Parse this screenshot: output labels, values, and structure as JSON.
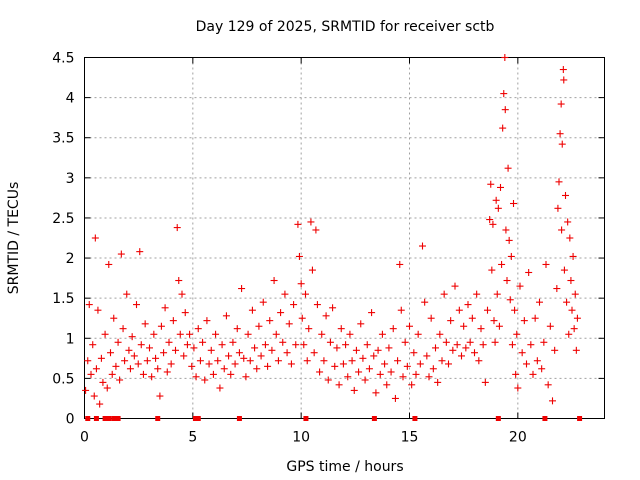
{
  "chart_data": {
    "type": "scatter",
    "title": "Day 129 of 2025, SRMTID for receiver sctb",
    "xlabel": "GPS time / hours",
    "ylabel": "SRMTID / TECUs",
    "xlim": [
      0,
      24
    ],
    "ylim": [
      0,
      4.5
    ],
    "xticks": [
      0,
      5,
      10,
      15,
      20
    ],
    "yticks": [
      0,
      0.5,
      1,
      1.5,
      2,
      2.5,
      3,
      3.5,
      4,
      4.5
    ],
    "grid": true,
    "marker": "+",
    "color": "#ee0000",
    "series": [
      {
        "name": "sctb",
        "points": [
          [
            0.05,
            0.35
          ],
          [
            0.15,
            0.72
          ],
          [
            0.22,
            1.42
          ],
          [
            0.3,
            0.55
          ],
          [
            0.38,
            0.92
          ],
          [
            0.45,
            0.28
          ],
          [
            0.5,
            2.25
          ],
          [
            0.55,
            0.62
          ],
          [
            0.62,
            1.35
          ],
          [
            0.7,
            0.18
          ],
          [
            0.78,
            0.75
          ],
          [
            0.85,
            0.45
          ],
          [
            0.95,
            1.05
          ],
          [
            1.05,
            0.38
          ],
          [
            1.12,
            1.92
          ],
          [
            1.2,
            0.82
          ],
          [
            1.28,
            0.55
          ],
          [
            1.35,
            1.25
          ],
          [
            1.45,
            0.65
          ],
          [
            1.55,
            0.95
          ],
          [
            1.62,
            0.48
          ],
          [
            1.7,
            2.05
          ],
          [
            1.78,
            1.12
          ],
          [
            1.85,
            0.72
          ],
          [
            1.95,
            1.55
          ],
          [
            2.05,
            0.85
          ],
          [
            2.12,
            0.62
          ],
          [
            2.2,
            1.02
          ],
          [
            2.3,
            0.78
          ],
          [
            2.4,
            1.42
          ],
          [
            2.48,
            0.68
          ],
          [
            2.55,
            2.08
          ],
          [
            2.62,
            0.92
          ],
          [
            2.72,
            0.55
          ],
          [
            2.8,
            1.18
          ],
          [
            2.9,
            0.72
          ],
          [
            3.0,
            0.88
          ],
          [
            3.1,
            0.52
          ],
          [
            3.2,
            1.05
          ],
          [
            3.28,
            0.75
          ],
          [
            3.38,
            0.62
          ],
          [
            3.48,
            0.28
          ],
          [
            3.55,
            1.15
          ],
          [
            3.65,
            0.82
          ],
          [
            3.72,
            1.38
          ],
          [
            3.82,
            0.58
          ],
          [
            3.9,
            0.95
          ],
          [
            4.0,
            0.68
          ],
          [
            4.1,
            1.22
          ],
          [
            4.2,
            0.85
          ],
          [
            4.28,
            2.38
          ],
          [
            4.35,
            1.72
          ],
          [
            4.42,
            1.05
          ],
          [
            4.5,
            1.55
          ],
          [
            4.58,
            0.78
          ],
          [
            4.65,
            1.32
          ],
          [
            4.75,
            0.92
          ],
          [
            4.85,
            1.05
          ],
          [
            4.95,
            0.65
          ],
          [
            5.05,
            0.88
          ],
          [
            5.15,
            0.52
          ],
          [
            5.25,
            1.12
          ],
          [
            5.35,
            0.72
          ],
          [
            5.45,
            0.95
          ],
          [
            5.55,
            0.48
          ],
          [
            5.65,
            1.22
          ],
          [
            5.75,
            0.68
          ],
          [
            5.85,
            0.85
          ],
          [
            5.95,
            0.55
          ],
          [
            6.05,
            1.05
          ],
          [
            6.15,
            0.72
          ],
          [
            6.25,
            0.38
          ],
          [
            6.35,
            0.92
          ],
          [
            6.45,
            0.62
          ],
          [
            6.55,
            1.28
          ],
          [
            6.65,
            0.78
          ],
          [
            6.75,
            0.55
          ],
          [
            6.85,
            0.95
          ],
          [
            6.95,
            0.68
          ],
          [
            7.05,
            1.12
          ],
          [
            7.15,
            0.82
          ],
          [
            7.25,
            1.62
          ],
          [
            7.35,
            0.75
          ],
          [
            7.45,
            0.52
          ],
          [
            7.55,
            1.05
          ],
          [
            7.65,
            0.72
          ],
          [
            7.75,
            1.35
          ],
          [
            7.85,
            0.88
          ],
          [
            7.95,
            0.62
          ],
          [
            8.05,
            1.15
          ],
          [
            8.15,
            0.78
          ],
          [
            8.25,
            1.45
          ],
          [
            8.35,
            0.92
          ],
          [
            8.45,
            0.65
          ],
          [
            8.55,
            1.22
          ],
          [
            8.65,
            0.85
          ],
          [
            8.75,
            1.72
          ],
          [
            8.85,
            1.05
          ],
          [
            8.95,
            0.72
          ],
          [
            9.05,
            1.32
          ],
          [
            9.15,
            0.95
          ],
          [
            9.25,
            1.55
          ],
          [
            9.35,
            0.82
          ],
          [
            9.45,
            1.18
          ],
          [
            9.55,
            0.68
          ],
          [
            9.65,
            1.42
          ],
          [
            9.75,
            0.92
          ],
          [
            9.85,
            2.42
          ],
          [
            9.92,
            2.02
          ],
          [
            10.0,
            1.68
          ],
          [
            10.05,
            1.25
          ],
          [
            10.12,
            0.92
          ],
          [
            10.2,
            1.55
          ],
          [
            10.28,
            0.72
          ],
          [
            10.35,
            1.12
          ],
          [
            10.45,
            2.45
          ],
          [
            10.52,
            1.85
          ],
          [
            10.6,
            0.82
          ],
          [
            10.68,
            2.35
          ],
          [
            10.75,
            1.42
          ],
          [
            10.85,
            0.58
          ],
          [
            10.95,
            1.05
          ],
          [
            11.05,
            0.72
          ],
          [
            11.15,
            1.28
          ],
          [
            11.25,
            0.48
          ],
          [
            11.35,
            0.95
          ],
          [
            11.45,
            1.38
          ],
          [
            11.55,
            0.65
          ],
          [
            11.65,
            0.88
          ],
          [
            11.75,
            0.42
          ],
          [
            11.85,
            1.12
          ],
          [
            11.95,
            0.68
          ],
          [
            12.05,
            0.92
          ],
          [
            12.15,
            0.52
          ],
          [
            12.25,
            1.05
          ],
          [
            12.35,
            0.72
          ],
          [
            12.45,
            0.35
          ],
          [
            12.55,
            0.85
          ],
          [
            12.65,
            0.58
          ],
          [
            12.75,
            1.18
          ],
          [
            12.85,
            0.75
          ],
          [
            12.95,
            0.48
          ],
          [
            13.05,
            0.92
          ],
          [
            13.15,
            0.62
          ],
          [
            13.25,
            1.32
          ],
          [
            13.35,
            0.78
          ],
          [
            13.45,
            0.32
          ],
          [
            13.55,
            0.85
          ],
          [
            13.65,
            0.55
          ],
          [
            13.75,
            1.05
          ],
          [
            13.85,
            0.68
          ],
          [
            13.95,
            0.42
          ],
          [
            14.05,
            0.88
          ],
          [
            14.15,
            0.58
          ],
          [
            14.25,
            1.12
          ],
          [
            14.35,
            0.25
          ],
          [
            14.45,
            0.72
          ],
          [
            14.55,
            1.92
          ],
          [
            14.62,
            1.35
          ],
          [
            14.7,
            0.52
          ],
          [
            14.8,
            0.95
          ],
          [
            14.9,
            0.65
          ],
          [
            15.0,
            1.15
          ],
          [
            15.1,
            0.42
          ],
          [
            15.2,
            0.82
          ],
          [
            15.3,
            0.55
          ],
          [
            15.4,
            1.05
          ],
          [
            15.5,
            0.68
          ],
          [
            15.6,
            2.15
          ],
          [
            15.7,
            1.45
          ],
          [
            15.8,
            0.78
          ],
          [
            15.9,
            0.52
          ],
          [
            16.0,
            1.25
          ],
          [
            16.1,
            0.62
          ],
          [
            16.2,
            0.88
          ],
          [
            16.3,
            0.45
          ],
          [
            16.4,
            1.05
          ],
          [
            16.5,
            0.72
          ],
          [
            16.6,
            1.55
          ],
          [
            16.7,
            0.95
          ],
          [
            16.8,
            0.68
          ],
          [
            16.9,
            1.22
          ],
          [
            17.0,
            0.85
          ],
          [
            17.1,
            1.65
          ],
          [
            17.2,
            0.92
          ],
          [
            17.3,
            1.35
          ],
          [
            17.4,
            0.78
          ],
          [
            17.5,
            1.15
          ],
          [
            17.6,
            0.88
          ],
          [
            17.7,
            1.42
          ],
          [
            17.8,
            0.95
          ],
          [
            17.9,
            1.25
          ],
          [
            18.0,
            0.82
          ],
          [
            18.1,
            1.55
          ],
          [
            18.2,
            0.72
          ],
          [
            18.3,
            1.12
          ],
          [
            18.4,
            0.92
          ],
          [
            18.5,
            0.45
          ],
          [
            18.6,
            1.35
          ],
          [
            18.7,
            2.48
          ],
          [
            18.75,
            2.92
          ],
          [
            18.8,
            1.85
          ],
          [
            18.85,
            2.42
          ],
          [
            18.9,
            1.22
          ],
          [
            18.95,
            0.95
          ],
          [
            19.0,
            2.72
          ],
          [
            19.05,
            1.55
          ],
          [
            19.1,
            2.62
          ],
          [
            19.15,
            1.15
          ],
          [
            19.2,
            2.88
          ],
          [
            19.25,
            1.92
          ],
          [
            19.3,
            3.62
          ],
          [
            19.35,
            4.05
          ],
          [
            19.4,
            4.5
          ],
          [
            19.42,
            3.85
          ],
          [
            19.45,
            2.35
          ],
          [
            19.5,
            1.72
          ],
          [
            19.55,
            3.12
          ],
          [
            19.6,
            2.22
          ],
          [
            19.65,
            1.48
          ],
          [
            19.7,
            2.02
          ],
          [
            19.75,
            0.92
          ],
          [
            19.8,
            2.68
          ],
          [
            19.85,
            1.35
          ],
          [
            19.9,
            0.55
          ],
          [
            19.95,
            1.05
          ],
          [
            20.0,
            0.38
          ],
          [
            20.1,
            1.65
          ],
          [
            20.2,
            0.82
          ],
          [
            20.3,
            1.22
          ],
          [
            20.4,
            0.68
          ],
          [
            20.5,
            1.82
          ],
          [
            20.6,
            0.92
          ],
          [
            20.7,
            0.55
          ],
          [
            20.8,
            1.25
          ],
          [
            20.9,
            0.72
          ],
          [
            21.0,
            1.45
          ],
          [
            21.1,
            0.62
          ],
          [
            21.2,
            0.95
          ],
          [
            21.3,
            1.92
          ],
          [
            21.4,
            0.42
          ],
          [
            21.5,
            1.15
          ],
          [
            21.6,
            0.22
          ],
          [
            21.7,
            0.85
          ],
          [
            21.8,
            1.62
          ],
          [
            21.85,
            2.62
          ],
          [
            21.9,
            2.95
          ],
          [
            21.95,
            3.55
          ],
          [
            22.0,
            3.92
          ],
          [
            22.02,
            2.35
          ],
          [
            22.05,
            3.42
          ],
          [
            22.1,
            4.35
          ],
          [
            22.12,
            4.22
          ],
          [
            22.15,
            1.85
          ],
          [
            22.2,
            2.78
          ],
          [
            22.25,
            1.45
          ],
          [
            22.3,
            2.45
          ],
          [
            22.35,
            1.05
          ],
          [
            22.4,
            2.25
          ],
          [
            22.45,
            1.72
          ],
          [
            22.5,
            1.35
          ],
          [
            22.55,
            2.02
          ],
          [
            22.6,
            1.12
          ],
          [
            22.65,
            1.55
          ],
          [
            22.7,
            0.85
          ],
          [
            22.75,
            1.25
          ]
        ]
      }
    ],
    "zero_points_x": [
      0.15,
      0.55,
      0.95,
      1.12,
      1.35,
      1.55,
      3.38,
      5.12,
      5.25,
      7.15,
      10.22,
      13.38,
      15.25,
      19.1,
      21.25,
      22.85
    ]
  }
}
